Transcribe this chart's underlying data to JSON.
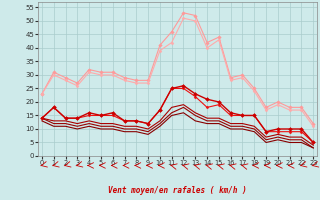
{
  "x": [
    0,
    1,
    2,
    3,
    4,
    5,
    6,
    7,
    8,
    9,
    10,
    11,
    12,
    13,
    14,
    15,
    16,
    17,
    18,
    19,
    20,
    21,
    22,
    23
  ],
  "bg_color": "#ceeaea",
  "grid_color": "#aacccc",
  "xlabel": "Vent moyen/en rafales ( km/h )",
  "ylim": [
    0,
    57
  ],
  "xlim": [
    -0.3,
    23.3
  ],
  "yticks": [
    0,
    5,
    10,
    15,
    20,
    25,
    30,
    35,
    40,
    45,
    50,
    55
  ],
  "xticks": [
    0,
    1,
    2,
    3,
    4,
    5,
    6,
    7,
    8,
    9,
    10,
    11,
    12,
    13,
    14,
    15,
    16,
    17,
    18,
    19,
    20,
    21,
    22,
    23
  ],
  "lines": [
    {
      "y": [
        23,
        31,
        29,
        27,
        32,
        31,
        31,
        29,
        28,
        28,
        41,
        46,
        53,
        52,
        42,
        44,
        29,
        30,
        25,
        18,
        20,
        18,
        18,
        12
      ],
      "color": "#ff9999",
      "lw": 0.8,
      "marker": "D",
      "ms": 1.8,
      "zorder": 2
    },
    {
      "y": [
        23,
        30,
        28,
        26,
        31,
        30,
        30,
        28,
        27,
        27,
        39,
        42,
        51,
        50,
        40,
        43,
        28,
        29,
        24,
        17,
        19,
        17,
        17,
        11
      ],
      "color": "#ffaaaa",
      "lw": 0.8,
      "marker": "D",
      "ms": 1.5,
      "zorder": 2
    },
    {
      "y": [
        14,
        18,
        14,
        14,
        16,
        15,
        16,
        13,
        13,
        12,
        17,
        25,
        26,
        23,
        21,
        20,
        16,
        15,
        15,
        9,
        10,
        10,
        10,
        5
      ],
      "color": "#cc0000",
      "lw": 1.0,
      "marker": "D",
      "ms": 2.0,
      "zorder": 4
    },
    {
      "y": [
        14,
        18,
        14,
        14,
        15,
        15,
        15,
        13,
        13,
        12,
        17,
        25,
        25,
        22,
        18,
        19,
        15,
        15,
        15,
        9,
        9,
        9,
        9,
        5
      ],
      "color": "#ee1111",
      "lw": 0.8,
      "marker": "D",
      "ms": 1.5,
      "zorder": 3
    },
    {
      "y": [
        14,
        13,
        13,
        12,
        13,
        12,
        12,
        11,
        11,
        10,
        13,
        18,
        19,
        16,
        14,
        14,
        12,
        12,
        11,
        7,
        8,
        7,
        7,
        4
      ],
      "color": "#aa0000",
      "lw": 0.8,
      "marker": null,
      "ms": 0,
      "zorder": 2
    },
    {
      "y": [
        14,
        12,
        12,
        11,
        12,
        11,
        11,
        10,
        10,
        9,
        12,
        16,
        18,
        15,
        13,
        13,
        11,
        11,
        10,
        6,
        7,
        6,
        6,
        3
      ],
      "color": "#990000",
      "lw": 0.8,
      "marker": null,
      "ms": 0,
      "zorder": 2
    },
    {
      "y": [
        13,
        11,
        11,
        10,
        11,
        10,
        10,
        9,
        9,
        8,
        11,
        15,
        16,
        13,
        12,
        12,
        10,
        10,
        9,
        5,
        6,
        5,
        5,
        3
      ],
      "color": "#880000",
      "lw": 0.8,
      "marker": null,
      "ms": 0,
      "zorder": 2
    }
  ],
  "wind_arrow_angles": [
    225,
    225,
    225,
    225,
    270,
    270,
    270,
    270,
    270,
    270,
    270,
    315,
    315,
    315,
    315,
    315,
    315,
    315,
    270,
    270,
    270,
    270,
    225,
    225
  ]
}
